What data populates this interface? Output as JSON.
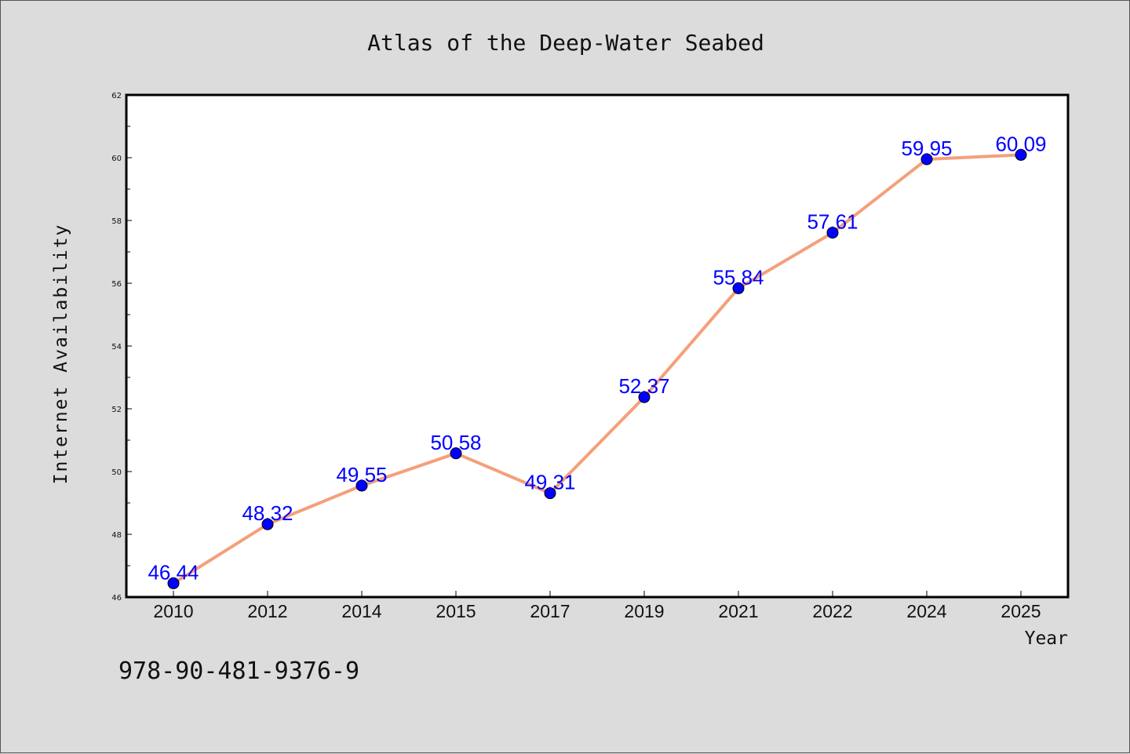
{
  "colors": {
    "background": "#dcdcdc",
    "plot_background": "#ffffff",
    "line": "#f4a07a",
    "marker": "#0000ff",
    "label": "#0000ff",
    "text": "#111111"
  },
  "footer": {
    "isbn": "978-90-481-9376-9"
  },
  "chart_data": {
    "type": "line",
    "title": "Atlas of the Deep-Water Seabed",
    "xlabel": "Year",
    "ylabel": "Internet Availability",
    "categories": [
      "2010",
      "2012",
      "2014",
      "2015",
      "2017",
      "2019",
      "2021",
      "2022",
      "2024",
      "2025"
    ],
    "series": [
      {
        "values": [
          46.44,
          48.32,
          49.55,
          50.58,
          49.31,
          52.37,
          55.84,
          57.61,
          59.95,
          60.09
        ],
        "labels": [
          "46.44",
          "48.32",
          "49.55",
          "50.58",
          "49.31",
          "52.37",
          "55.84",
          "57.61",
          "59.95",
          "60.09"
        ]
      }
    ],
    "ylim": [
      46,
      62
    ],
    "yticks": [
      "46",
      "48",
      "50",
      "52",
      "54",
      "56",
      "58",
      "60",
      "62"
    ],
    "grid": false,
    "legend": "none",
    "marker": "circle"
  }
}
